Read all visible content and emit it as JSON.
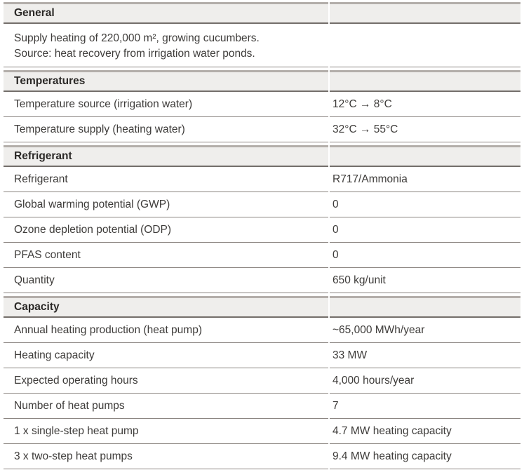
{
  "colors": {
    "page_bg": "#ffffff",
    "section_band_bg": "#efeeec",
    "section_top_border": "#b3aeaa",
    "section_bottom_border": "#736e6a",
    "row_divider": "#8a8480",
    "body_text": "#3e3c3a",
    "heading_text": "#2b2927"
  },
  "table": {
    "sections": [
      {
        "title": "General",
        "description_lines": [
          "Supply heating of 220,000 m², growing cucumbers.",
          "Source: heat recovery from irrigation water ponds."
        ],
        "rows": []
      },
      {
        "title": "Temperatures",
        "rows": [
          {
            "label": "Temperature source (irrigation water)",
            "value": "12°C → 8°C"
          },
          {
            "label": "Temperature supply (heating water)",
            "value": "32°C → 55°C"
          }
        ]
      },
      {
        "title": "Refrigerant",
        "rows": [
          {
            "label": "Refrigerant",
            "value": "R717/Ammonia"
          },
          {
            "label": "Global warming potential (GWP)",
            "value": "0"
          },
          {
            "label": "Ozone depletion potential (ODP)",
            "value": "0"
          },
          {
            "label": "PFAS content",
            "value": "0"
          },
          {
            "label": "Quantity",
            "value": "650 kg/unit"
          }
        ]
      },
      {
        "title": "Capacity",
        "rows": [
          {
            "label": "Annual heating production (heat pump)",
            "value": "~65,000 MWh/year"
          },
          {
            "label": "Heating capacity",
            "value": "33 MW"
          },
          {
            "label": "Expected operating hours",
            "value": "4,000 hours/year"
          },
          {
            "label": "Number of heat pumps",
            "value": "7"
          },
          {
            "label": "1 x single-step heat pump",
            "value": "4.7 MW heating capacity"
          },
          {
            "label": "3 x two-step heat pumps",
            "value": "9.4 MW heating capacity"
          }
        ]
      }
    ]
  }
}
